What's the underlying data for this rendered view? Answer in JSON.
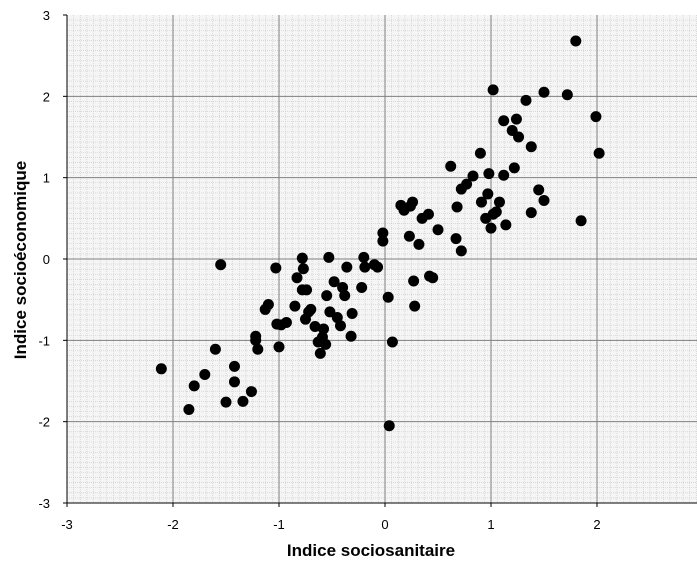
{
  "chart_data": {
    "type": "scatter",
    "title": "",
    "xlabel": "Indice sociosanitaire",
    "ylabel": "Indice  socioéconomique",
    "xlim": [
      -3,
      3
    ],
    "ylim": [
      -3,
      3
    ],
    "xticks": [
      "-3",
      "-2",
      "-1",
      "0",
      "1",
      "2",
      "3"
    ],
    "yticks": [
      "-3",
      "-2",
      "-1",
      "0",
      "1",
      "2",
      "3"
    ],
    "grid": true,
    "minor_grid": true,
    "legend": "none",
    "colors": {
      "background": "#f5f5f5",
      "minor_grid": "#c8c8c8",
      "major_grid": "#7f7f7f",
      "marker": "#000000"
    },
    "series": [
      {
        "points": [
          [
            -2.11,
            -1.35
          ],
          [
            -1.85,
            -1.85
          ],
          [
            -1.8,
            -1.56
          ],
          [
            -1.7,
            -1.42
          ],
          [
            -1.6,
            -1.11
          ],
          [
            -1.5,
            -1.76
          ],
          [
            -1.42,
            -1.32
          ],
          [
            -1.42,
            -1.51
          ],
          [
            -1.34,
            -1.75
          ],
          [
            -1.26,
            -1.63
          ],
          [
            -1.55,
            -0.07
          ],
          [
            -1.22,
            -1.0
          ],
          [
            -1.2,
            -1.11
          ],
          [
            -1.22,
            -0.95
          ],
          [
            -1.13,
            -0.62
          ],
          [
            -1.1,
            -0.56
          ],
          [
            -1.02,
            -0.8
          ],
          [
            -0.98,
            -0.81
          ],
          [
            -0.93,
            -0.78
          ],
          [
            -0.85,
            -0.58
          ],
          [
            -1.03,
            -0.11
          ],
          [
            -1.0,
            -1.08
          ],
          [
            -0.83,
            -0.23
          ],
          [
            -0.78,
            -0.38
          ],
          [
            -0.75,
            -0.74
          ],
          [
            -0.7,
            -0.62
          ],
          [
            -0.66,
            -0.83
          ],
          [
            -0.63,
            -1.02
          ],
          [
            -0.61,
            -1.16
          ],
          [
            -0.58,
            -0.86
          ],
          [
            -0.56,
            -1.05
          ],
          [
            -0.78,
            0.01
          ],
          [
            -0.77,
            -0.12
          ],
          [
            -0.74,
            -0.38
          ],
          [
            -0.72,
            -0.65
          ],
          [
            -0.59,
            -0.96
          ],
          [
            -0.55,
            -0.45
          ],
          [
            -0.53,
            0.02
          ],
          [
            -0.52,
            -0.65
          ],
          [
            -0.48,
            -0.28
          ],
          [
            -0.45,
            -0.72
          ],
          [
            -0.42,
            -0.82
          ],
          [
            -0.4,
            -0.35
          ],
          [
            -0.38,
            -0.45
          ],
          [
            -0.36,
            -0.1
          ],
          [
            -0.31,
            -0.67
          ],
          [
            -0.32,
            -0.95
          ],
          [
            -0.22,
            -0.35
          ],
          [
            -0.2,
            0.02
          ],
          [
            -0.19,
            -0.1
          ],
          [
            -0.1,
            -0.07
          ],
          [
            -0.07,
            -0.1
          ],
          [
            -0.02,
            0.32
          ],
          [
            -0.02,
            0.22
          ],
          [
            0.03,
            -0.47
          ],
          [
            0.04,
            -2.05
          ],
          [
            0.07,
            -1.02
          ],
          [
            0.15,
            0.66
          ],
          [
            0.18,
            0.6
          ],
          [
            0.23,
            0.28
          ],
          [
            0.24,
            0.65
          ],
          [
            0.26,
            0.7
          ],
          [
            0.27,
            -0.27
          ],
          [
            0.28,
            -0.58
          ],
          [
            0.32,
            0.18
          ],
          [
            0.35,
            0.5
          ],
          [
            0.41,
            0.55
          ],
          [
            0.42,
            -0.21
          ],
          [
            0.45,
            -0.23
          ],
          [
            0.5,
            0.36
          ],
          [
            0.62,
            1.14
          ],
          [
            0.67,
            0.25
          ],
          [
            0.68,
            0.64
          ],
          [
            0.72,
            0.1
          ],
          [
            0.72,
            0.86
          ],
          [
            0.77,
            0.92
          ],
          [
            0.83,
            1.02
          ],
          [
            0.9,
            1.3
          ],
          [
            0.91,
            0.7
          ],
          [
            0.95,
            0.5
          ],
          [
            0.97,
            0.8
          ],
          [
            0.98,
            1.05
          ],
          [
            1.0,
            0.38
          ],
          [
            1.02,
            0.55
          ],
          [
            1.02,
            2.08
          ],
          [
            1.05,
            0.58
          ],
          [
            1.08,
            0.7
          ],
          [
            1.12,
            1.7
          ],
          [
            1.12,
            1.03
          ],
          [
            1.14,
            0.42
          ],
          [
            1.2,
            1.58
          ],
          [
            1.22,
            1.12
          ],
          [
            1.24,
            1.72
          ],
          [
            1.26,
            1.5
          ],
          [
            1.33,
            1.95
          ],
          [
            1.38,
            1.38
          ],
          [
            1.38,
            0.57
          ],
          [
            1.45,
            0.85
          ],
          [
            1.5,
            2.05
          ],
          [
            1.5,
            0.72
          ],
          [
            1.72,
            2.02
          ],
          [
            1.8,
            2.68
          ],
          [
            1.85,
            0.47
          ],
          [
            1.99,
            1.75
          ],
          [
            2.02,
            1.3
          ]
        ]
      }
    ]
  }
}
